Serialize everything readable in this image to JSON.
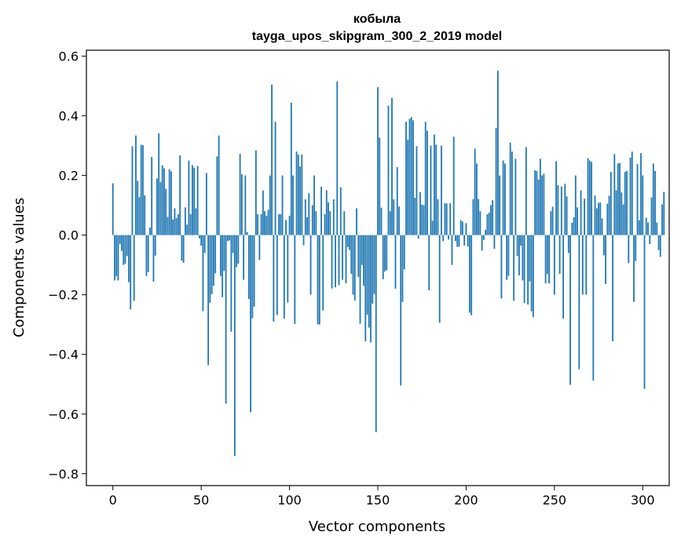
{
  "chart_data": {
    "type": "bar",
    "title": "кобыла",
    "subtitle": "tayga_upos_skipgram_300_2_2019 model",
    "xlabel": "Vector components",
    "ylabel": "Components values",
    "xlim": [
      -15,
      315
    ],
    "ylim": [
      -0.84,
      0.62
    ],
    "xticks": [
      0,
      50,
      100,
      150,
      200,
      250,
      300
    ],
    "yticks": [
      -0.8,
      -0.6,
      -0.4,
      -0.2,
      0.0,
      0.2,
      0.4,
      0.6
    ],
    "ytick_labels": [
      "−0.8",
      "−0.6",
      "−0.4",
      "−0.2",
      "0.0",
      "0.2",
      "0.4",
      "0.6"
    ],
    "grid": false,
    "color": "#1f77b4",
    "values": [
      0.174,
      -0.152,
      -0.138,
      -0.152,
      -0.03,
      -0.053,
      -0.1,
      -0.096,
      -0.07,
      -0.158,
      -0.249,
      0.298,
      -0.22,
      0.334,
      0.182,
      0.127,
      0.303,
      0.301,
      0.133,
      -0.137,
      -0.124,
      0.025,
      0.262,
      -0.156,
      -0.069,
      0.19,
      0.341,
      0.178,
      0.234,
      0.224,
      0.155,
      0.061,
      0.221,
      0.214,
      0.052,
      0.09,
      0.057,
      0.07,
      0.267,
      -0.086,
      -0.093,
      0.093,
      0.035,
      0.25,
      0.07,
      0.234,
      0.226,
      0.09,
      0.232,
      -0.011,
      -0.035,
      -0.255,
      -0.06,
      0.208,
      -0.436,
      -0.227,
      -0.198,
      -0.17,
      -0.128,
      0.264,
      0.334,
      -0.137,
      -0.208,
      -0.12,
      -0.565,
      -0.02,
      -0.018,
      -0.324,
      -0.06,
      -0.741,
      -0.107,
      -0.096,
      0.272,
      0.204,
      -0.15,
      0.2,
      0.01,
      -0.214,
      -0.594,
      -0.279,
      -0.24,
      0.284,
      0.07,
      -0.083,
      0.07,
      0.15,
      0.08,
      0.065,
      0.085,
      0.2,
      0.505,
      -0.29,
      0.38,
      -0.268,
      0.07,
      0.07,
      0.2,
      -0.28,
      0.05,
      -0.226,
      0.065,
      0.444,
      0.2,
      -0.298,
      0.28,
      0.27,
      0.23,
      0.27,
      -0.034,
      0.12,
      0.06,
      0.14,
      -0.2,
      0.1,
      0.2,
      0.08,
      -0.299,
      -0.3,
      0.162,
      -0.253,
      0.07,
      0.15,
      0.11,
      0.08,
      -0.179,
      0.12,
      -0.175,
      0.515,
      -0.168,
      0.16,
      -0.15,
      0.08,
      -0.162,
      -0.04,
      -0.05,
      -0.13,
      -0.2,
      -0.22,
      0.09,
      -0.14,
      -0.297,
      -0.1,
      -0.17,
      -0.356,
      -0.267,
      -0.31,
      -0.36,
      -0.23,
      -0.198,
      -0.661,
      0.496,
      0.327,
      0.092,
      -0.148,
      -0.122,
      -0.118,
      0.434,
      0.08,
      0.46,
      0.12,
      -0.18,
      0.228,
      0.096,
      -0.504,
      -0.224,
      -0.115,
      0.38,
      0.32,
      0.39,
      0.396,
      0.385,
      0.125,
      0.298,
      -0.012,
      0.144,
      0.102,
      0.1,
      0.38,
      0.35,
      -0.185,
      0.3,
      0.048,
      0.337,
      0.303,
      0.12,
      -0.294,
      0.3,
      -0.02,
      0.107,
      0.106,
      -0.015,
      0.107,
      -0.1,
      0.33,
      -0.02,
      -0.039,
      -0.039,
      0.05,
      0.045,
      -0.035,
      0.04,
      -0.039,
      -0.26,
      -0.269,
      0.12,
      0.29,
      0.24,
      0.121,
      0.08,
      -0.052,
      -0.016,
      0.018,
      0.07,
      0.075,
      0.1,
      0.117,
      -0.046,
      0.36,
      0.551,
      0.2,
      -0.212,
      0.25,
      0.24,
      -0.15,
      -0.137,
      0.31,
      0.28,
      -0.22,
      0.256,
      -0.07,
      -0.135,
      -0.035,
      -0.152,
      -0.228,
      0.295,
      -0.233,
      -0.155,
      -0.256,
      -0.275,
      0.217,
      0.215,
      0.186,
      0.256,
      0.2,
      0.206,
      -0.162,
      -0.13,
      -0.162,
      0.08,
      0.095,
      -0.2,
      0.248,
      0.168,
      -0.13,
      0.163,
      -0.28,
      0.172,
      0.13,
      -0.06,
      -0.502,
      0.042,
      0.06,
      0.2,
      0.093,
      -0.45,
      0.15,
      -0.2,
      0.122,
      -0.2,
      0.258,
      0.25,
      0.245,
      -0.488,
      0.133,
      0.09,
      0.108,
      0.109,
      0.056,
      -0.068,
      -0.164,
      0.105,
      0.132,
      0.212,
      -0.356,
      0.272,
      0.15,
      0.24,
      0.242,
      0.143,
      0.103,
      0.212,
      0.215,
      -0.094,
      0.26,
      0.28,
      -0.224,
      -0.087,
      0.238,
      0.05,
      0.275,
      0.2,
      -0.515,
      0.058,
      0.042,
      -0.03,
      0.126,
      0.24,
      0.215,
      0.042,
      -0.05,
      -0.073,
      0.103,
      0.145
    ]
  }
}
